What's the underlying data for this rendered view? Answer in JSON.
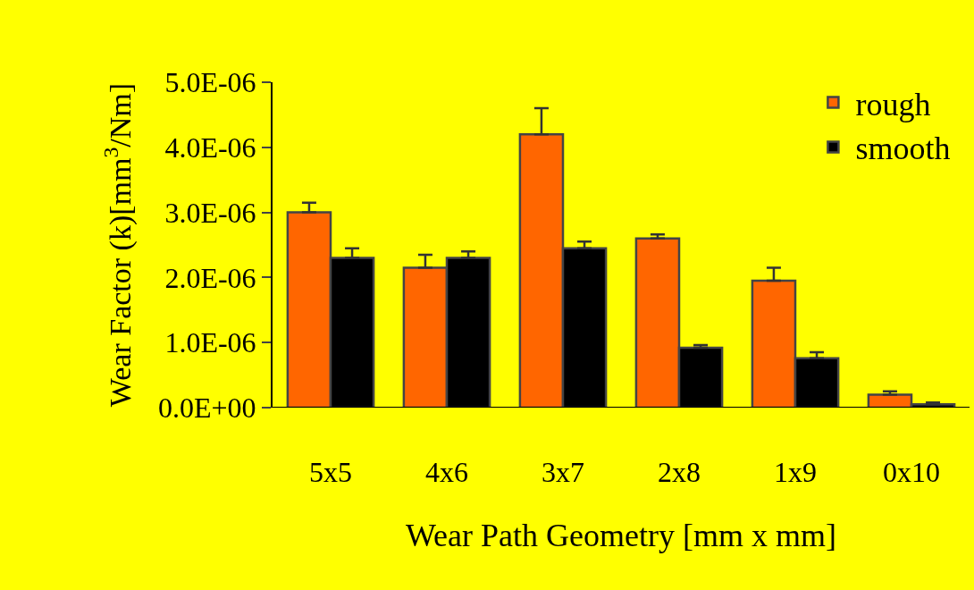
{
  "chart_data": {
    "type": "bar",
    "xlabel": "Wear Path Geometry [mm x mm]",
    "ylabel": "Wear Factor (k)[mm$^{3}$/Nm]",
    "categories": [
      "5x5",
      "4x6",
      "3x7",
      "2x8",
      "1x9",
      "0x10"
    ],
    "series": [
      {
        "name": "rough",
        "color": "#ff6600",
        "values": [
          3e-06,
          2.15e-06,
          4.2e-06,
          2.6e-06,
          1.95e-06,
          2e-07
        ],
        "errors": [
          [
            3e-06,
            3.15e-06
          ],
          [
            2.15e-06,
            2.35e-06
          ],
          [
            4.2e-06,
            4.6e-06
          ],
          [
            2.6e-06,
            2.66e-06
          ],
          [
            1.95e-06,
            2.15e-06
          ],
          [
            2e-07,
            2.5e-07
          ]
        ]
      },
      {
        "name": "smooth",
        "color": "#000000",
        "values": [
          2.3e-06,
          2.3e-06,
          2.45e-06,
          9.2e-07,
          7.6e-07,
          5e-08
        ],
        "errors": [
          [
            2.3e-06,
            2.45e-06
          ],
          [
            2.3e-06,
            2.4e-06
          ],
          [
            2.45e-06,
            2.55e-06
          ],
          [
            9.2e-07,
            9.6e-07
          ],
          [
            7.6e-07,
            8.5e-07
          ],
          [
            5e-08,
            8e-08
          ]
        ]
      }
    ],
    "ylim": [
      0,
      5e-06
    ],
    "yticks": [
      {
        "value": 0,
        "label": "0.0E+00"
      },
      {
        "value": 1e-06,
        "label": "1.0E-06"
      },
      {
        "value": 2e-06,
        "label": "2.0E-06"
      },
      {
        "value": 3e-06,
        "label": "3.0E-06"
      },
      {
        "value": 4e-06,
        "label": "4.0E-06"
      },
      {
        "value": 5e-06,
        "label": "5.0E-06"
      }
    ],
    "grid": false,
    "legend": "top right"
  }
}
